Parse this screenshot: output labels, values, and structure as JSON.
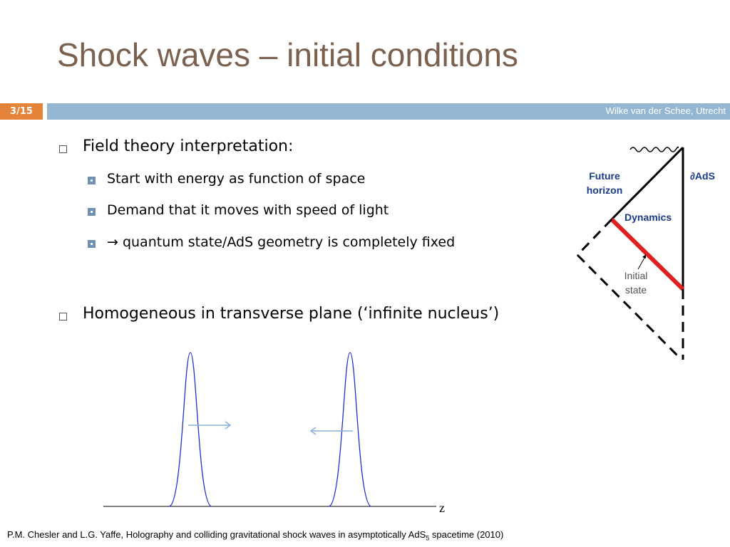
{
  "header": {
    "title": "Shock waves – initial conditions",
    "slide_number": "3/15",
    "footer": "Wilke van der Schee, Utrecht"
  },
  "bullets": [
    {
      "text": "Field theory interpretation:",
      "subitems": [
        "Start with energy as function of space",
        "Demand that it moves with speed of light",
        "→ quantum state/AdS geometry is completely fixed"
      ]
    },
    {
      "text": "Homogeneous in transverse plane (‘infinite nucleus’)",
      "subitems": []
    }
  ],
  "diagram": {
    "future_horizon": [
      "Future",
      "horizon"
    ],
    "boundary": "∂AdS",
    "dynamics": "Dynamics",
    "initial_state": [
      "Initial",
      "state"
    ]
  },
  "plot": {
    "axis_label": "z"
  },
  "citation": {
    "text": "P.M. Chesler and L.G. Yaffe, Holography and colliding gravitational shock waves in asymptotically AdS",
    "subscript": "5",
    "tail": " spacetime (2010)"
  }
}
